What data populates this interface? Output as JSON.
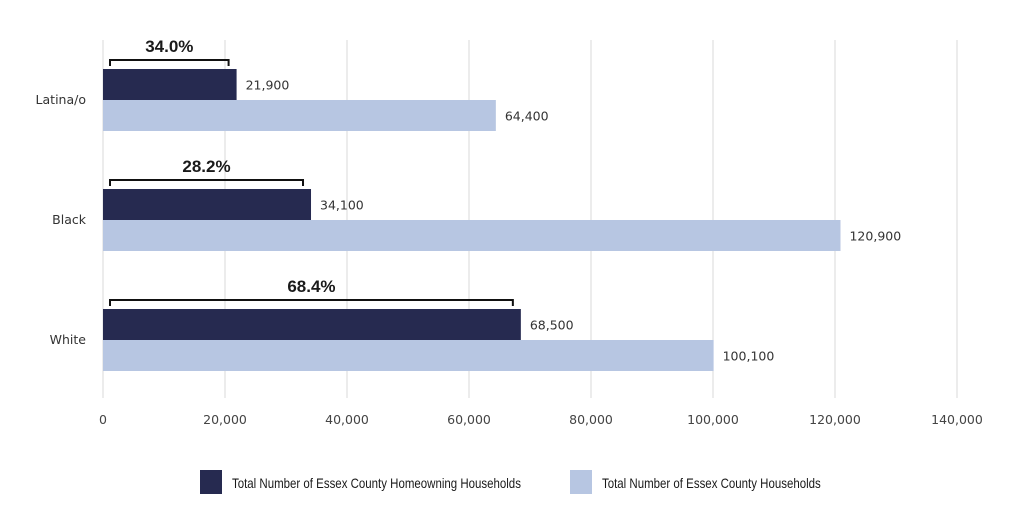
{
  "chart_data": {
    "type": "bar",
    "orientation": "horizontal",
    "categories": [
      "Latina/o",
      "Black",
      "White"
    ],
    "series": [
      {
        "name": "Total Number of Essex County Homeowning Households",
        "values": [
          21900,
          34100,
          68500
        ],
        "labels": [
          "21,900",
          "34,100",
          "68,500"
        ],
        "color": "#262a50"
      },
      {
        "name": "Total Number of Essex County Households",
        "values": [
          64400,
          120900,
          100100
        ],
        "labels": [
          "64,400",
          "120,900",
          "100,100"
        ],
        "color": "#b7c6e2"
      }
    ],
    "annotations": [
      "34.0%",
      "28.2%",
      "68.4%"
    ],
    "xlim": [
      0,
      140000
    ],
    "xticks": [
      0,
      20000,
      40000,
      60000,
      80000,
      100000,
      120000,
      140000
    ],
    "xtick_labels": [
      "0",
      "20,000",
      "40,000",
      "60,000",
      "80,000",
      "100,000",
      "120,000",
      "140,000"
    ],
    "grid": true,
    "legend_position": "bottom",
    "title": "",
    "xlabel": "",
    "ylabel": ""
  }
}
